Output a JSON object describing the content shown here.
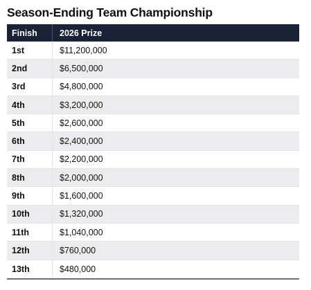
{
  "title": "Season-Ending Team Championship",
  "table": {
    "headers": [
      "Finish",
      "2026 Prize"
    ],
    "rows": [
      {
        "finish": "1st",
        "prize": "$11,200,000"
      },
      {
        "finish": "2nd",
        "prize": "$6,500,000"
      },
      {
        "finish": "3rd",
        "prize": "$4,800,000"
      },
      {
        "finish": "4th",
        "prize": "$3,200,000"
      },
      {
        "finish": "5th",
        "prize": "$2,600,000"
      },
      {
        "finish": "6th",
        "prize": "$2,400,000"
      },
      {
        "finish": "7th",
        "prize": "$2,200,000"
      },
      {
        "finish": "8th",
        "prize": "$2,000,000"
      },
      {
        "finish": "9th",
        "prize": "$1,600,000"
      },
      {
        "finish": "10th",
        "prize": "$1,320,000"
      },
      {
        "finish": "11th",
        "prize": "$1,040,000"
      },
      {
        "finish": "12th",
        "prize": "$760,000"
      },
      {
        "finish": "13th",
        "prize": "$480,000"
      }
    ]
  },
  "colors": {
    "header_bg": "#1a2238",
    "alt_row_bg": "#ececef"
  }
}
